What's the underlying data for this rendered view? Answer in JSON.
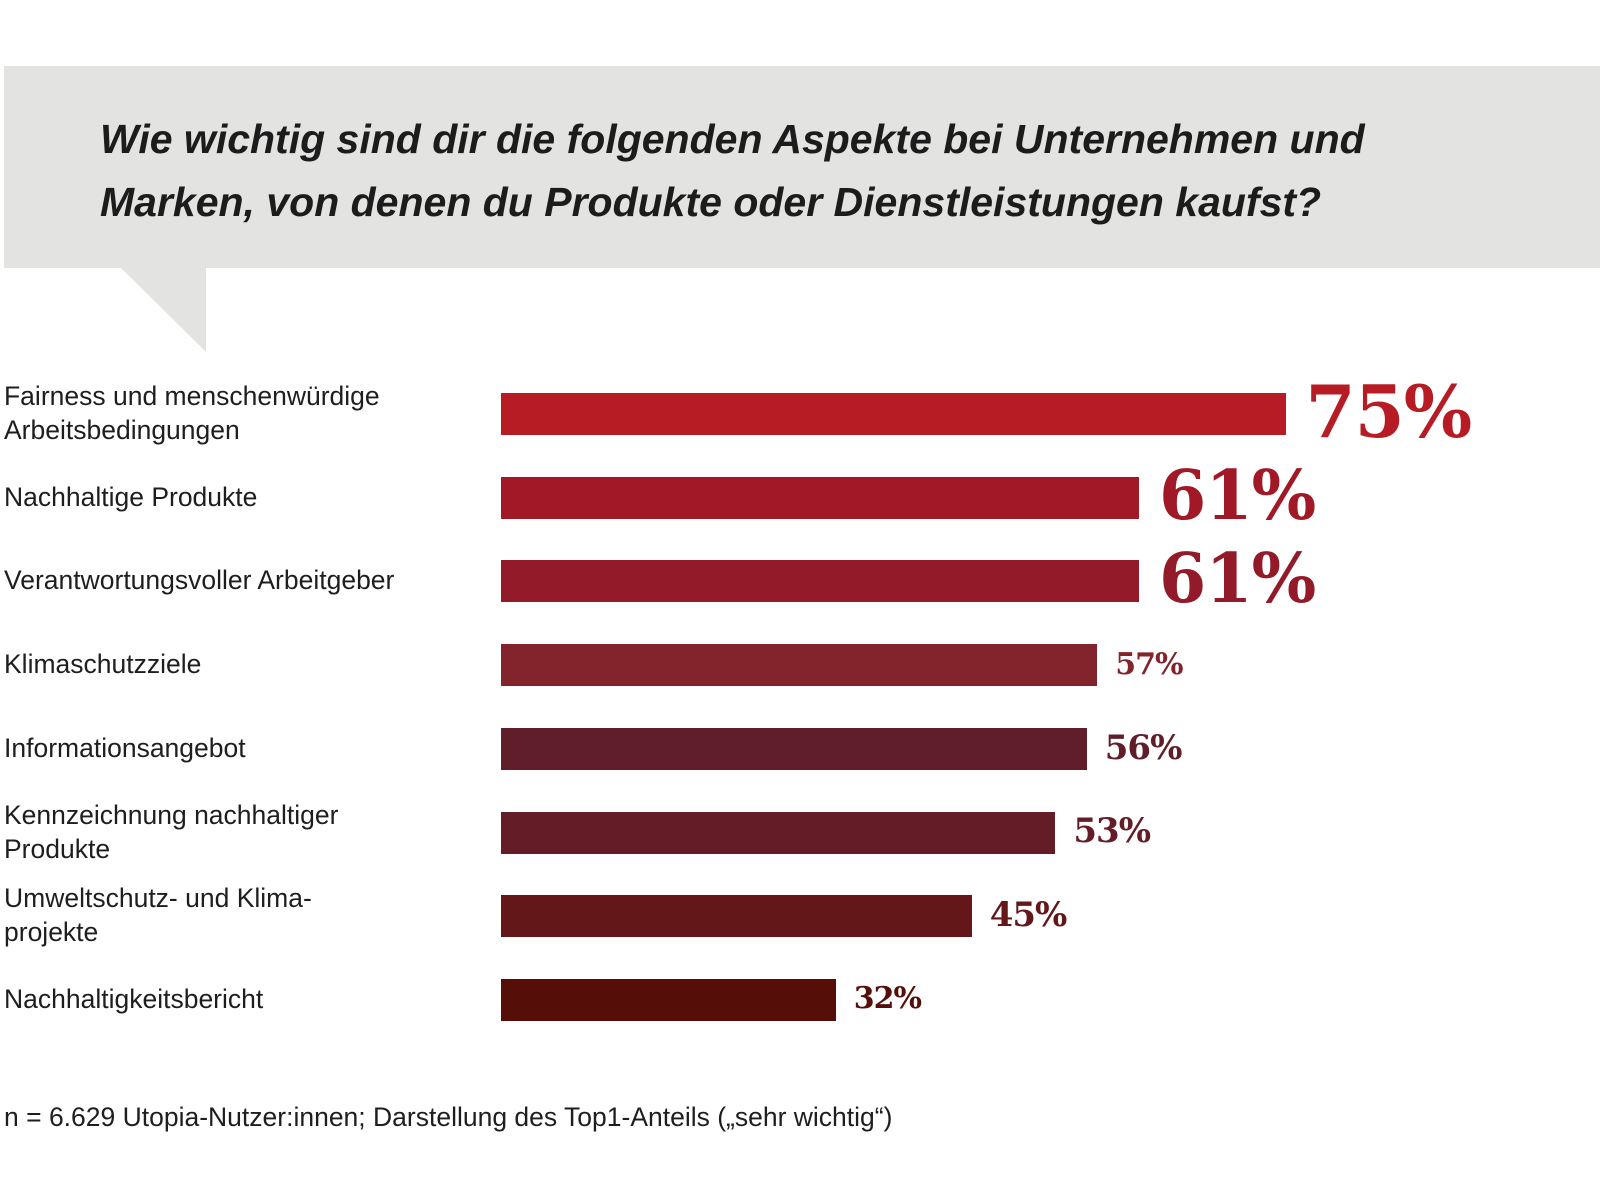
{
  "chart_data": {
    "type": "bar",
    "orientation": "horizontal",
    "title": "Wie wichtig sind dir die folgenden Aspekte bei Unternehmen und Marken, von denen du Produkte oder Dienstleistungen kaufst?",
    "title_lines": [
      "Wie wichtig sind dir die folgenden Aspekte bei Unternehmen und",
      "Marken, von denen du Produkte oder Dienstleistungen kaufst?"
    ],
    "categories": [
      "Fairness und menschenwürdige\nArbeitsbedingungen",
      "Nachhaltige Produkte",
      "Verantwortungsvoller Arbeitgeber",
      "Klimaschutzziele",
      "Informationsangebot",
      "Kennzeichnung nachhaltiger\nProdukte",
      "Umweltschutz- und Klima-\nprojekte",
      "Nachhaltigkeitsbericht"
    ],
    "values": [
      75,
      61,
      61,
      57,
      56,
      53,
      45,
      32
    ],
    "value_labels": [
      "75%",
      "61%",
      "61%",
      "57%",
      "56%",
      "53%",
      "45%",
      "32%"
    ],
    "bar_colors": [
      "#b71c25",
      "#a11827",
      "#931a29",
      "#83232c",
      "#5f1e29",
      "#641c27",
      "#631719",
      "#560f08"
    ],
    "label_colors": [
      "#b71c25",
      "#a11827",
      "#931a29",
      "#83232c",
      "#5f1e29",
      "#641c27",
      "#631719",
      "#560f08"
    ],
    "xlabel": "",
    "ylabel": "",
    "xlim": [
      0,
      100
    ],
    "unit": "%",
    "grid": false,
    "legend": null
  },
  "footnote": "n = 6.629 Utopia-Nutzer:innen; Darstellung des Top1-Anteils („sehr wichtig“)",
  "colors": {
    "banner": "#e3e3e2",
    "title_text": "#1c1c1c"
  }
}
